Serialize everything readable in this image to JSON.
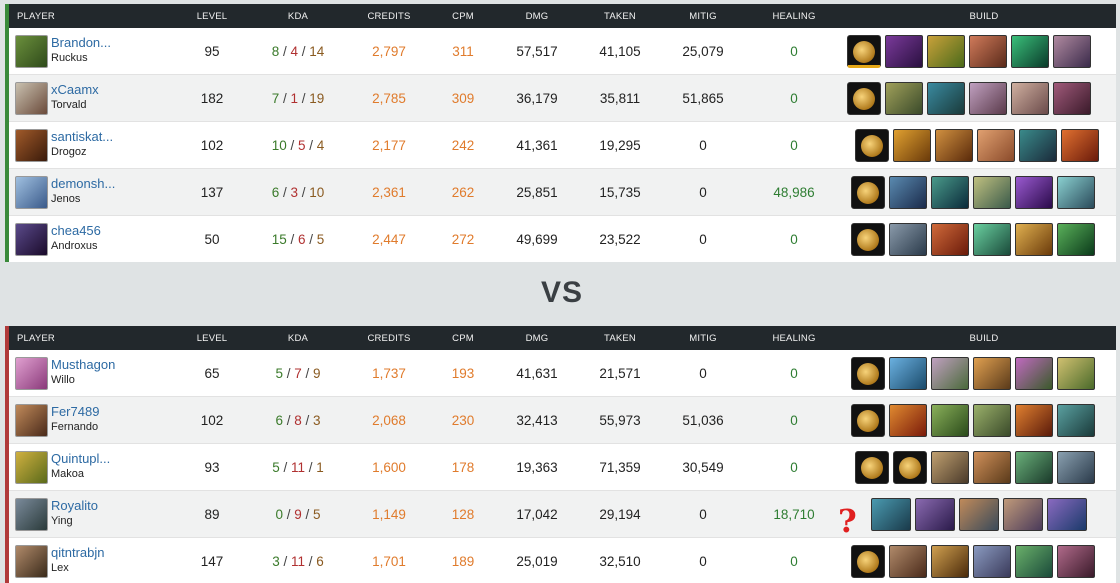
{
  "columns": {
    "player": "PLAYER",
    "level": "LEVEL",
    "kda": "KDA",
    "credits": "CREDITS",
    "cpm": "CPM",
    "dmg": "DMG",
    "taken": "TAKEN",
    "mitig": "MITIG",
    "healing": "HEALING",
    "build": "BUILD"
  },
  "vs_label": "VS",
  "question_mark": "?",
  "colors": {
    "win_accent": "#3a8a3a",
    "loss_accent": "#b03a3a",
    "header_bg": "#22282c",
    "credits": "#e07b2c"
  },
  "team1": {
    "players": [
      {
        "name": "Brandon...",
        "champion": "Ruckus",
        "level": "95",
        "k": "8",
        "d": "4",
        "a": "14",
        "credits": "2,797",
        "cpm": "311",
        "dmg": "57,517",
        "taken": "41,105",
        "mitig": "25,079",
        "healing": "0"
      },
      {
        "name": "xCaamx",
        "champion": "Torvald",
        "level": "182",
        "k": "7",
        "d": "1",
        "a": "19",
        "credits": "2,785",
        "cpm": "309",
        "dmg": "36,179",
        "taken": "35,811",
        "mitig": "51,865",
        "healing": "0"
      },
      {
        "name": "santiskat...",
        "champion": "Drogoz",
        "level": "102",
        "k": "10",
        "d": "5",
        "a": "4",
        "credits": "2,177",
        "cpm": "242",
        "dmg": "41,361",
        "taken": "19,295",
        "mitig": "0",
        "healing": "0"
      },
      {
        "name": "demonsh...",
        "champion": "Jenos",
        "level": "137",
        "k": "6",
        "d": "3",
        "a": "10",
        "credits": "2,361",
        "cpm": "262",
        "dmg": "25,851",
        "taken": "15,735",
        "mitig": "0",
        "healing": "48,986"
      },
      {
        "name": "chea456",
        "champion": "Androxus",
        "level": "50",
        "k": "15",
        "d": "6",
        "a": "5",
        "credits": "2,447",
        "cpm": "272",
        "dmg": "49,699",
        "taken": "23,522",
        "mitig": "0",
        "healing": "0"
      }
    ]
  },
  "team2": {
    "players": [
      {
        "name": "Musthagon",
        "champion": "Willo",
        "level": "65",
        "k": "5",
        "d": "7",
        "a": "9",
        "credits": "1,737",
        "cpm": "193",
        "dmg": "41,631",
        "taken": "21,571",
        "mitig": "0",
        "healing": "0"
      },
      {
        "name": "Fer7489",
        "champion": "Fernando",
        "level": "102",
        "k": "6",
        "d": "8",
        "a": "3",
        "credits": "2,068",
        "cpm": "230",
        "dmg": "32,413",
        "taken": "55,973",
        "mitig": "51,036",
        "healing": "0"
      },
      {
        "name": "Quintupl...",
        "champion": "Makoa",
        "level": "93",
        "k": "5",
        "d": "11",
        "a": "1",
        "credits": "1,600",
        "cpm": "178",
        "dmg": "19,363",
        "taken": "71,359",
        "mitig": "30,549",
        "healing": "0"
      },
      {
        "name": "Royalito",
        "champion": "Ying",
        "level": "89",
        "k": "0",
        "d": "9",
        "a": "5",
        "credits": "1,149",
        "cpm": "128",
        "dmg": "17,042",
        "taken": "29,194",
        "mitig": "0",
        "healing": "18,710"
      },
      {
        "name": "qitntrabjn",
        "champion": "Lex",
        "level": "147",
        "k": "3",
        "d": "11",
        "a": "6",
        "credits": "1,701",
        "cpm": "189",
        "dmg": "25,019",
        "taken": "32,510",
        "mitig": "0",
        "healing": "0"
      }
    ]
  }
}
